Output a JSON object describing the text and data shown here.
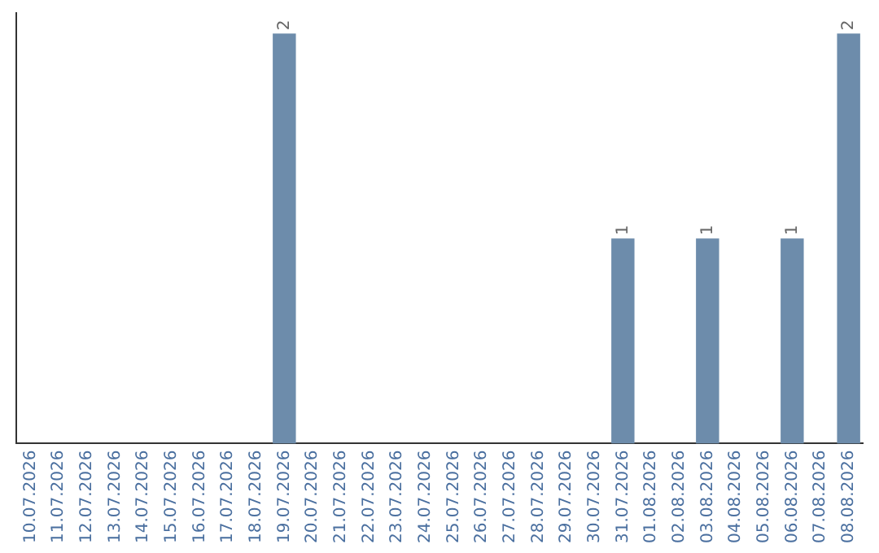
{
  "chart_data": {
    "type": "bar",
    "categories": [
      "10.07.2026",
      "11.07.2026",
      "12.07.2026",
      "13.07.2026",
      "14.07.2026",
      "15.07.2026",
      "16.07.2026",
      "17.07.2026",
      "18.07.2026",
      "19.07.2026",
      "20.07.2026",
      "21.07.2026",
      "22.07.2026",
      "23.07.2026",
      "24.07.2026",
      "25.07.2026",
      "26.07.2026",
      "27.07.2026",
      "28.07.2026",
      "29.07.2026",
      "30.07.2026",
      "31.07.2026",
      "01.08.2026",
      "02.08.2026",
      "03.08.2026",
      "04.08.2026",
      "05.08.2026",
      "06.08.2026",
      "07.08.2026",
      "08.08.2026"
    ],
    "values": [
      0,
      0,
      0,
      0,
      0,
      0,
      0,
      0,
      0,
      2,
      0,
      0,
      0,
      0,
      0,
      0,
      0,
      0,
      0,
      0,
      0,
      1,
      0,
      0,
      1,
      0,
      0,
      1,
      0,
      2
    ],
    "value_labels": [
      null,
      null,
      null,
      null,
      null,
      null,
      null,
      null,
      null,
      "2",
      null,
      null,
      null,
      null,
      null,
      null,
      null,
      null,
      null,
      null,
      null,
      "1",
      null,
      null,
      "1",
      null,
      null,
      "1",
      null,
      "2"
    ],
    "color": "#6d8cab",
    "ylim": [
      0,
      2.1
    ],
    "tick_labels": "x",
    "grid": false,
    "legend": false
  }
}
